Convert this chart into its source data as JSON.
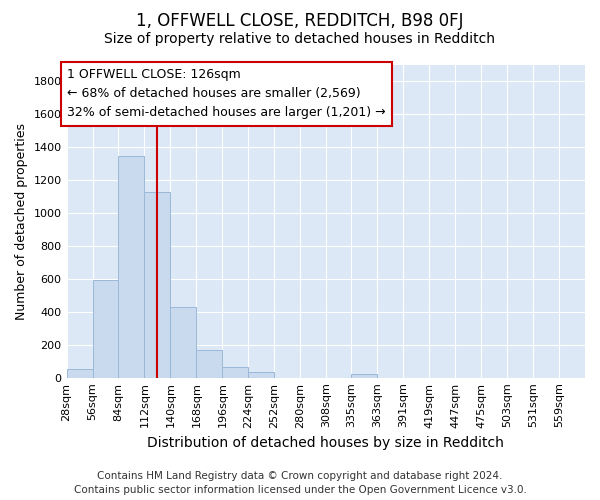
{
  "title": "1, OFFWELL CLOSE, REDDITCH, B98 0FJ",
  "subtitle": "Size of property relative to detached houses in Redditch",
  "xlabel": "Distribution of detached houses by size in Redditch",
  "ylabel": "Number of detached properties",
  "footer_line1": "Contains HM Land Registry data © Crown copyright and database right 2024.",
  "footer_line2": "Contains public sector information licensed under the Open Government Licence v3.0.",
  "annotation_line1": "1 OFFWELL CLOSE: 126sqm",
  "annotation_line2": "← 68% of detached houses are smaller (2,569)",
  "annotation_line3": "32% of semi-detached houses are larger (1,201) →",
  "bar_edges": [
    28,
    56,
    84,
    112,
    140,
    168,
    196,
    224,
    252,
    280,
    308,
    335,
    363,
    391,
    419,
    447,
    475,
    503,
    531,
    559,
    587
  ],
  "bar_heights": [
    55,
    595,
    1350,
    1130,
    430,
    170,
    65,
    35,
    0,
    0,
    0,
    20,
    0,
    0,
    0,
    0,
    0,
    0,
    0,
    0
  ],
  "bar_color": "#c9d9ee",
  "bar_edge_color": "#9ab8d8",
  "vline_color": "#cc0000",
  "vline_x": 126,
  "ylim": [
    0,
    1900
  ],
  "yticks": [
    0,
    200,
    400,
    600,
    800,
    1000,
    1200,
    1400,
    1600,
    1800
  ],
  "fig_bg_color": "#ffffff",
  "plot_bg_color": "#dce8f5",
  "grid_color": "#ffffff",
  "annotation_box_facecolor": "#ffffff",
  "annotation_border_color": "#cc0000",
  "title_fontsize": 12,
  "subtitle_fontsize": 10,
  "xlabel_fontsize": 10,
  "ylabel_fontsize": 9,
  "tick_fontsize": 8,
  "annotation_fontsize": 9,
  "footer_fontsize": 7.5
}
